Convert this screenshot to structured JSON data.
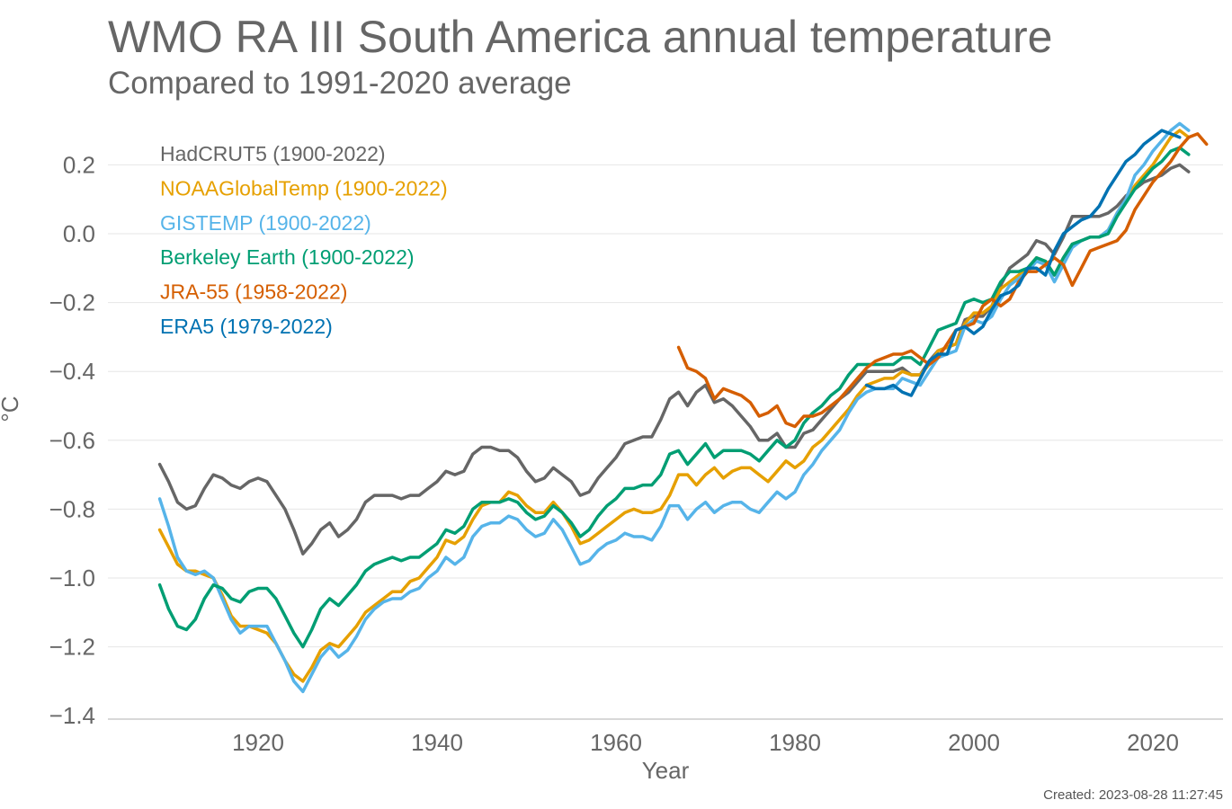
{
  "chart_data": {
    "type": "line",
    "title": "WMO RA III South America annual temperature",
    "subtitle": "Compared to 1991-2020 average",
    "xlabel": "Year",
    "ylabel": "°C",
    "xlim": [
      1900,
      2025
    ],
    "ylim": [
      -1.4,
      0.35
    ],
    "xticks": [
      1920,
      1940,
      1960,
      1980,
      2000,
      2020
    ],
    "yticks": [
      -1.4,
      -1.2,
      -1.0,
      -0.8,
      -0.6,
      -0.4,
      -0.2,
      0.0,
      0.2
    ],
    "ytick_labels": [
      "−1.4",
      "−1.2",
      "−1.0",
      "−0.8",
      "−0.6",
      "−0.4",
      "−0.2",
      "0.0",
      "0.2"
    ],
    "grid": true,
    "legend_position": "top-left",
    "created": "Created: 2023-08-28 11:27:45",
    "series": [
      {
        "name": "HadCRUT5 (1900-2022)",
        "color": "#666666",
        "x_start": 1909,
        "values": [
          -0.67,
          -0.72,
          -0.78,
          -0.8,
          -0.79,
          -0.74,
          -0.7,
          -0.71,
          -0.73,
          -0.74,
          -0.72,
          -0.71,
          -0.72,
          -0.76,
          -0.8,
          -0.86,
          -0.93,
          -0.9,
          -0.86,
          -0.84,
          -0.88,
          -0.86,
          -0.83,
          -0.78,
          -0.76,
          -0.76,
          -0.76,
          -0.77,
          -0.76,
          -0.76,
          -0.74,
          -0.72,
          -0.69,
          -0.7,
          -0.69,
          -0.64,
          -0.62,
          -0.62,
          -0.63,
          -0.63,
          -0.65,
          -0.69,
          -0.72,
          -0.71,
          -0.68,
          -0.7,
          -0.72,
          -0.76,
          -0.75,
          -0.71,
          -0.68,
          -0.65,
          -0.61,
          -0.6,
          -0.59,
          -0.59,
          -0.54,
          -0.48,
          -0.46,
          -0.5,
          -0.46,
          -0.44,
          -0.49,
          -0.48,
          -0.5,
          -0.53,
          -0.56,
          -0.6,
          -0.6,
          -0.58,
          -0.62,
          -0.62,
          -0.58,
          -0.57,
          -0.54,
          -0.51,
          -0.48,
          -0.46,
          -0.43,
          -0.4,
          -0.4,
          -0.4,
          -0.4,
          -0.39,
          -0.41,
          -0.41,
          -0.37,
          -0.34,
          -0.33,
          -0.32,
          -0.25,
          -0.24,
          -0.24,
          -0.21,
          -0.15,
          -0.1,
          -0.08,
          -0.06,
          -0.02,
          -0.03,
          -0.06,
          -0.01,
          0.05,
          0.05,
          0.05,
          0.05,
          0.06,
          0.08,
          0.11,
          0.13,
          0.15,
          0.16,
          0.17,
          0.19,
          0.2,
          0.18
        ]
      },
      {
        "name": "NOAAGlobalTemp (1900-2022)",
        "color": "#E6A000",
        "x_start": 1909,
        "values": [
          -0.86,
          -0.91,
          -0.96,
          -0.98,
          -0.98,
          -0.99,
          -1.0,
          -1.05,
          -1.11,
          -1.14,
          -1.14,
          -1.15,
          -1.16,
          -1.19,
          -1.24,
          -1.28,
          -1.3,
          -1.26,
          -1.21,
          -1.19,
          -1.2,
          -1.17,
          -1.14,
          -1.1,
          -1.08,
          -1.06,
          -1.04,
          -1.04,
          -1.01,
          -1.0,
          -0.97,
          -0.94,
          -0.89,
          -0.9,
          -0.88,
          -0.83,
          -0.79,
          -0.78,
          -0.78,
          -0.75,
          -0.76,
          -0.79,
          -0.81,
          -0.81,
          -0.78,
          -0.81,
          -0.85,
          -0.9,
          -0.89,
          -0.87,
          -0.85,
          -0.83,
          -0.81,
          -0.8,
          -0.81,
          -0.81,
          -0.8,
          -0.76,
          -0.7,
          -0.7,
          -0.73,
          -0.7,
          -0.68,
          -0.71,
          -0.69,
          -0.68,
          -0.68,
          -0.7,
          -0.72,
          -0.69,
          -0.66,
          -0.68,
          -0.66,
          -0.62,
          -0.6,
          -0.57,
          -0.54,
          -0.51,
          -0.47,
          -0.44,
          -0.43,
          -0.42,
          -0.42,
          -0.4,
          -0.41,
          -0.41,
          -0.38,
          -0.34,
          -0.33,
          -0.32,
          -0.26,
          -0.23,
          -0.23,
          -0.21,
          -0.16,
          -0.14,
          -0.12,
          -0.1,
          -0.07,
          -0.08,
          -0.12,
          -0.07,
          -0.03,
          -0.02,
          -0.01,
          -0.01,
          0.01,
          0.06,
          0.1,
          0.14,
          0.17,
          0.2,
          0.24,
          0.28,
          0.3,
          0.28
        ]
      },
      {
        "name": "GISTEMP (1900-2022)",
        "color": "#56B4E9",
        "x_start": 1909,
        "values": [
          -0.77,
          -0.85,
          -0.94,
          -0.98,
          -0.99,
          -0.98,
          -1.0,
          -1.06,
          -1.12,
          -1.16,
          -1.14,
          -1.14,
          -1.14,
          -1.19,
          -1.24,
          -1.3,
          -1.33,
          -1.28,
          -1.23,
          -1.2,
          -1.23,
          -1.21,
          -1.17,
          -1.12,
          -1.09,
          -1.07,
          -1.06,
          -1.06,
          -1.04,
          -1.03,
          -1.0,
          -0.98,
          -0.94,
          -0.96,
          -0.94,
          -0.88,
          -0.85,
          -0.84,
          -0.84,
          -0.82,
          -0.83,
          -0.86,
          -0.88,
          -0.87,
          -0.83,
          -0.86,
          -0.91,
          -0.96,
          -0.95,
          -0.92,
          -0.9,
          -0.89,
          -0.87,
          -0.88,
          -0.88,
          -0.89,
          -0.85,
          -0.79,
          -0.79,
          -0.83,
          -0.8,
          -0.78,
          -0.81,
          -0.79,
          -0.78,
          -0.78,
          -0.8,
          -0.81,
          -0.78,
          -0.75,
          -0.77,
          -0.75,
          -0.7,
          -0.67,
          -0.63,
          -0.6,
          -0.57,
          -0.52,
          -0.48,
          -0.46,
          -0.45,
          -0.45,
          -0.45,
          -0.42,
          -0.43,
          -0.44,
          -0.4,
          -0.36,
          -0.35,
          -0.34,
          -0.27,
          -0.25,
          -0.26,
          -0.24,
          -0.19,
          -0.15,
          -0.13,
          -0.11,
          -0.08,
          -0.09,
          -0.14,
          -0.09,
          -0.04,
          -0.02,
          -0.01,
          -0.01,
          0.01,
          0.06,
          0.1,
          0.17,
          0.2,
          0.24,
          0.27,
          0.3,
          0.32,
          0.3
        ]
      },
      {
        "name": "Berkeley Earth (1900-2022)",
        "color": "#009E73",
        "x_start": 1909,
        "values": [
          -1.02,
          -1.09,
          -1.14,
          -1.15,
          -1.12,
          -1.06,
          -1.02,
          -1.03,
          -1.06,
          -1.07,
          -1.04,
          -1.03,
          -1.03,
          -1.06,
          -1.11,
          -1.16,
          -1.2,
          -1.15,
          -1.09,
          -1.06,
          -1.08,
          -1.05,
          -1.02,
          -0.98,
          -0.96,
          -0.95,
          -0.94,
          -0.95,
          -0.94,
          -0.94,
          -0.92,
          -0.9,
          -0.86,
          -0.87,
          -0.85,
          -0.8,
          -0.78,
          -0.78,
          -0.78,
          -0.77,
          -0.78,
          -0.81,
          -0.83,
          -0.82,
          -0.79,
          -0.81,
          -0.84,
          -0.88,
          -0.86,
          -0.82,
          -0.79,
          -0.77,
          -0.74,
          -0.74,
          -0.73,
          -0.73,
          -0.7,
          -0.64,
          -0.63,
          -0.67,
          -0.64,
          -0.61,
          -0.65,
          -0.63,
          -0.63,
          -0.63,
          -0.64,
          -0.66,
          -0.63,
          -0.6,
          -0.62,
          -0.6,
          -0.55,
          -0.52,
          -0.5,
          -0.47,
          -0.45,
          -0.41,
          -0.38,
          -0.38,
          -0.38,
          -0.38,
          -0.38,
          -0.36,
          -0.36,
          -0.38,
          -0.33,
          -0.28,
          -0.27,
          -0.26,
          -0.2,
          -0.19,
          -0.2,
          -0.19,
          -0.14,
          -0.11,
          -0.11,
          -0.1,
          -0.07,
          -0.08,
          -0.12,
          -0.07,
          -0.03,
          -0.02,
          -0.01,
          -0.01,
          0.0,
          0.05,
          0.09,
          0.13,
          0.16,
          0.19,
          0.21,
          0.24,
          0.25,
          0.23
        ]
      },
      {
        "name": "JRA-55 (1958-2022)",
        "color": "#D55E00",
        "x_start": 1967,
        "values": [
          -0.33,
          -0.39,
          -0.4,
          -0.42,
          -0.48,
          -0.45,
          -0.46,
          -0.47,
          -0.49,
          -0.53,
          -0.52,
          -0.5,
          -0.55,
          -0.56,
          -0.53,
          -0.53,
          -0.52,
          -0.5,
          -0.48,
          -0.45,
          -0.42,
          -0.39,
          -0.37,
          -0.36,
          -0.35,
          -0.35,
          -0.34,
          -0.36,
          -0.38,
          -0.36,
          -0.32,
          -0.28,
          -0.27,
          -0.26,
          -0.21,
          -0.19,
          -0.21,
          -0.19,
          -0.14,
          -0.11,
          -0.11,
          -0.09,
          -0.07,
          -0.09,
          -0.15,
          -0.1,
          -0.05,
          -0.04,
          -0.03,
          -0.02,
          0.01,
          0.07,
          0.11,
          0.15,
          0.18,
          0.21,
          0.25,
          0.28,
          0.29,
          0.26
        ]
      },
      {
        "name": "ERA5 (1979-2022)",
        "color": "#0072B2",
        "x_start": 1988,
        "values": [
          -0.44,
          -0.45,
          -0.45,
          -0.44,
          -0.46,
          -0.47,
          -0.42,
          -0.37,
          -0.35,
          -0.35,
          -0.28,
          -0.27,
          -0.29,
          -0.27,
          -0.22,
          -0.18,
          -0.17,
          -0.15,
          -0.1,
          -0.1,
          -0.12,
          -0.05,
          0.0,
          0.02,
          0.04,
          0.05,
          0.08,
          0.13,
          0.17,
          0.21,
          0.23,
          0.26,
          0.28,
          0.3,
          0.29,
          0.28
        ]
      }
    ]
  }
}
